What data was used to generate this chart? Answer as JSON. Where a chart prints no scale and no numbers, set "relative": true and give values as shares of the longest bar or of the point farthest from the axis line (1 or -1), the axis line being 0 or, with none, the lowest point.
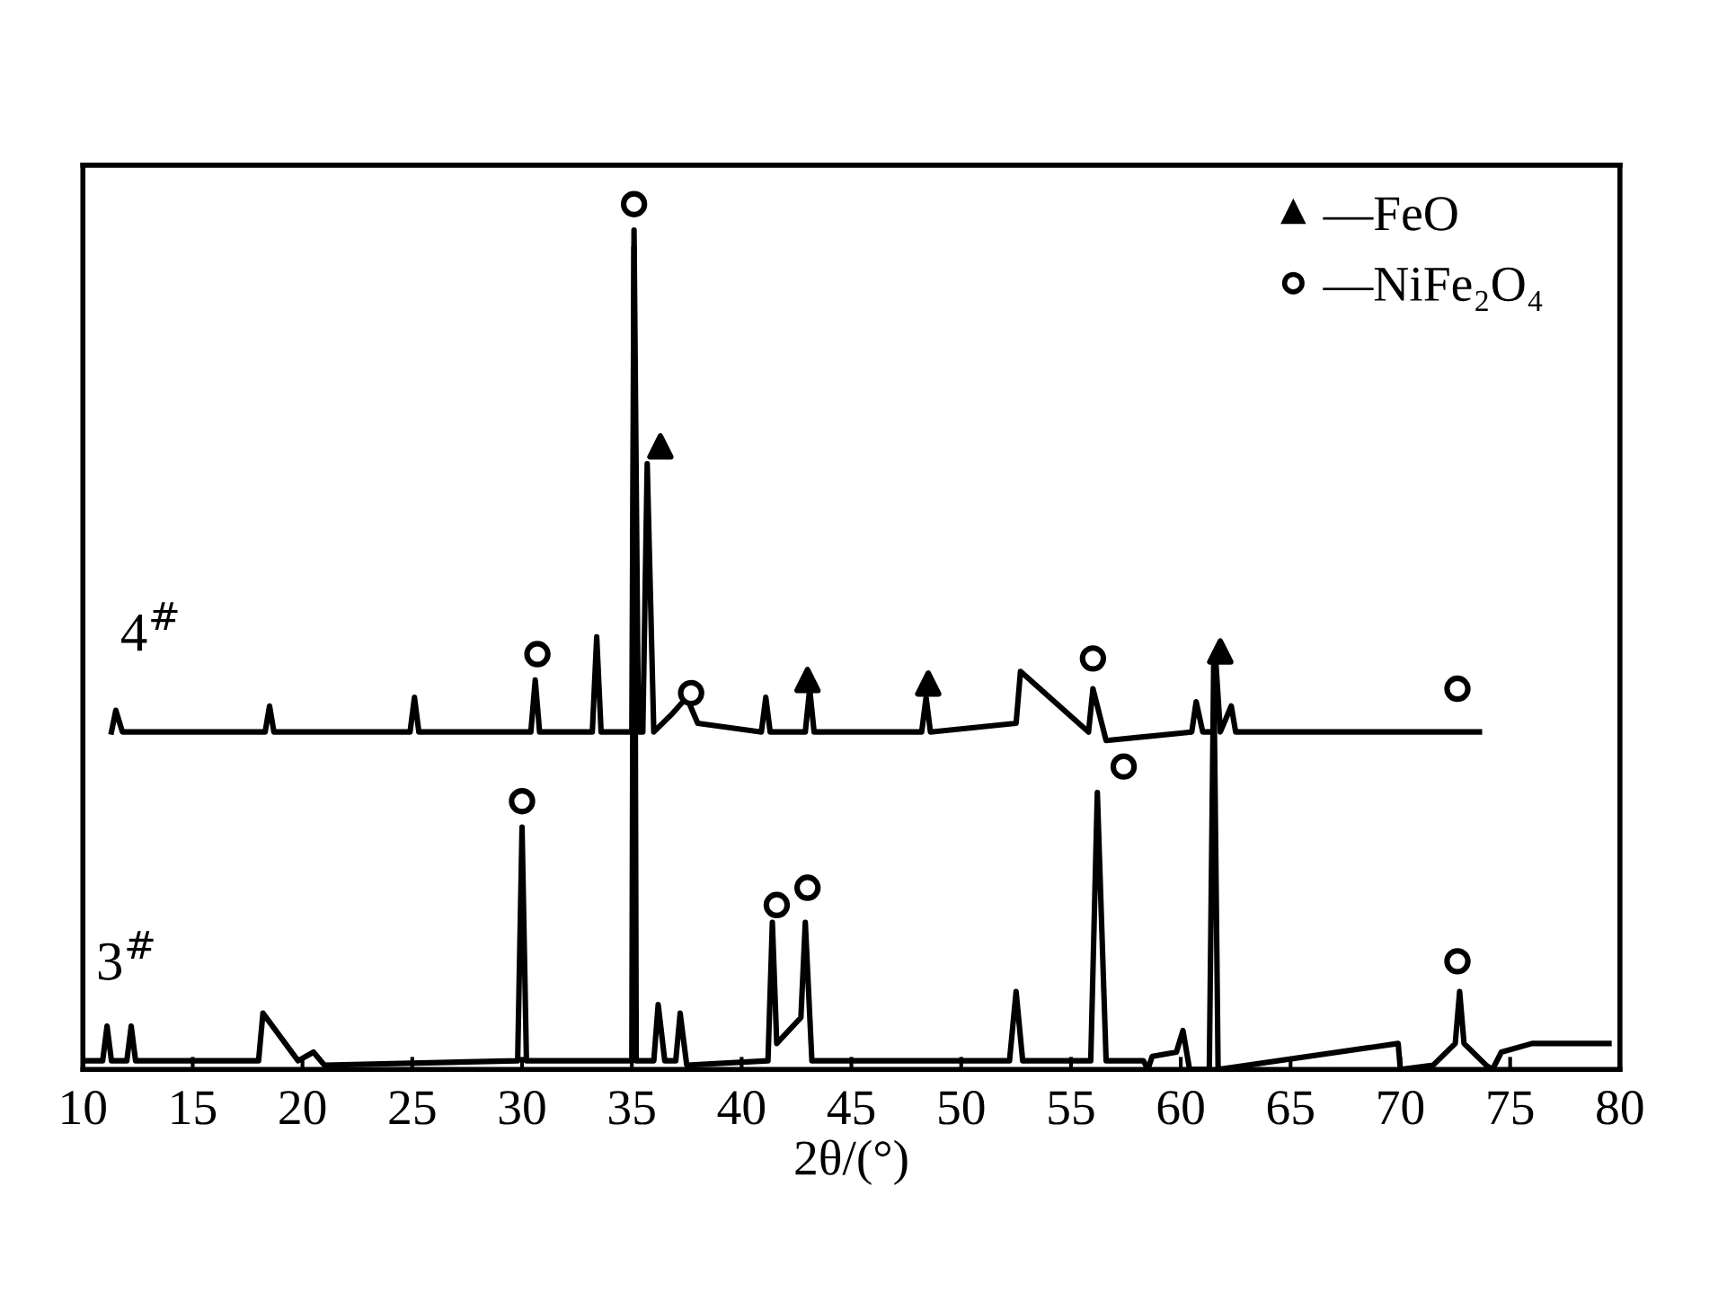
{
  "chart_data": {
    "type": "line",
    "xlabel": "2θ/(°)",
    "relative": true,
    "xlim": [
      10,
      80
    ],
    "xticks": [
      10,
      15,
      20,
      25,
      30,
      35,
      40,
      45,
      50,
      55,
      60,
      65,
      70,
      75,
      80
    ],
    "grid": false,
    "legend": "top right",
    "tick_labels": "x",
    "series": [
      {
        "name": "4$^{#}$",
        "color": "#000000",
        "x": [
          11.3,
          11.5,
          11.8,
          18.3,
          18.5,
          18.7,
          24.9,
          25.1,
          25.3,
          30.4,
          30.6,
          30.8,
          33.2,
          33.4,
          33.6,
          35.0,
          35.1,
          35.3,
          35.5,
          35.7,
          36.0,
          36.8,
          37.5,
          38.0,
          40.9,
          41.1,
          41.3,
          42.9,
          43.1,
          43.3,
          48.2,
          48.4,
          48.6,
          52.5,
          52.7,
          55.8,
          56.0,
          56.6,
          60.5,
          60.7,
          61.0,
          61.5,
          61.6,
          61.8,
          62.3,
          62.5,
          73.6
        ],
        "values": [
          0.39,
          0.415,
          0.39,
          0.39,
          0.42,
          0.39,
          0.39,
          0.43,
          0.39,
          0.39,
          0.45,
          0.39,
          0.39,
          0.5,
          0.39,
          0.39,
          0.97,
          0.39,
          0.39,
          0.7,
          0.39,
          0.41,
          0.43,
          0.4,
          0.39,
          0.43,
          0.39,
          0.39,
          0.44,
          0.39,
          0.39,
          0.43,
          0.39,
          0.4,
          0.46,
          0.39,
          0.44,
          0.38,
          0.39,
          0.425,
          0.39,
          0.39,
          0.47,
          0.39,
          0.42,
          0.39,
          0.39
        ]
      },
      {
        "name": "3$^{#}$",
        "color": "#000000",
        "x": [
          10.2,
          10.9,
          11.1,
          11.3,
          12.0,
          12.2,
          12.4,
          18.0,
          18.2,
          19.8,
          20.5,
          21.0,
          29.8,
          30.0,
          30.2,
          35.0,
          35.1,
          35.2,
          36.0,
          36.2,
          36.5,
          37.0,
          37.2,
          37.5,
          41.2,
          41.4,
          41.6,
          42.7,
          42.9,
          43.2,
          52.2,
          52.5,
          52.8,
          55.9,
          56.2,
          56.6,
          58.3,
          58.5,
          58.7,
          59.8,
          60.1,
          60.4,
          61.3,
          61.5,
          61.7,
          69.9,
          70.0,
          71.5,
          72.5,
          72.7,
          72.9,
          73.9,
          74.2,
          74.6,
          76.0,
          79.5
        ],
        "values": [
          0.01,
          0.01,
          0.05,
          0.01,
          0.01,
          0.05,
          0.01,
          0.01,
          0.065,
          0.01,
          0.02,
          0.005,
          0.01,
          0.28,
          0.01,
          0.01,
          0.95,
          0.01,
          0.01,
          0.075,
          0.01,
          0.01,
          0.065,
          0.005,
          0.01,
          0.17,
          0.03,
          0.06,
          0.17,
          0.01,
          0.01,
          0.09,
          0.01,
          0.01,
          0.32,
          0.01,
          0.01,
          0.0,
          0.015,
          0.02,
          0.045,
          0.0,
          0.0,
          0.47,
          0.0,
          0.03,
          0.0,
          0.005,
          0.03,
          0.09,
          0.03,
          0.005,
          0.0,
          0.02,
          0.03,
          0.03
        ]
      },
      {
        "name": "—FeO",
        "color": "#000000",
        "type": "scatter",
        "marker": "triangle",
        "x": [
          36.3,
          43.0,
          48.5,
          61.8
        ],
        "values": [
          0.72,
          0.45,
          0.446,
          0.483
        ]
      },
      {
        "name": "—NiFe₂O₄",
        "color": "#000000",
        "type": "scatter",
        "marker": "circle",
        "x": [
          35.1,
          30.7,
          37.7,
          56.0,
          72.6,
          30.0,
          41.6,
          43.0,
          57.4,
          72.6
        ],
        "values": [
          1.0,
          0.48,
          0.435,
          0.475,
          0.44,
          0.31,
          0.19,
          0.21,
          0.35,
          0.125
        ]
      }
    ]
  }
}
